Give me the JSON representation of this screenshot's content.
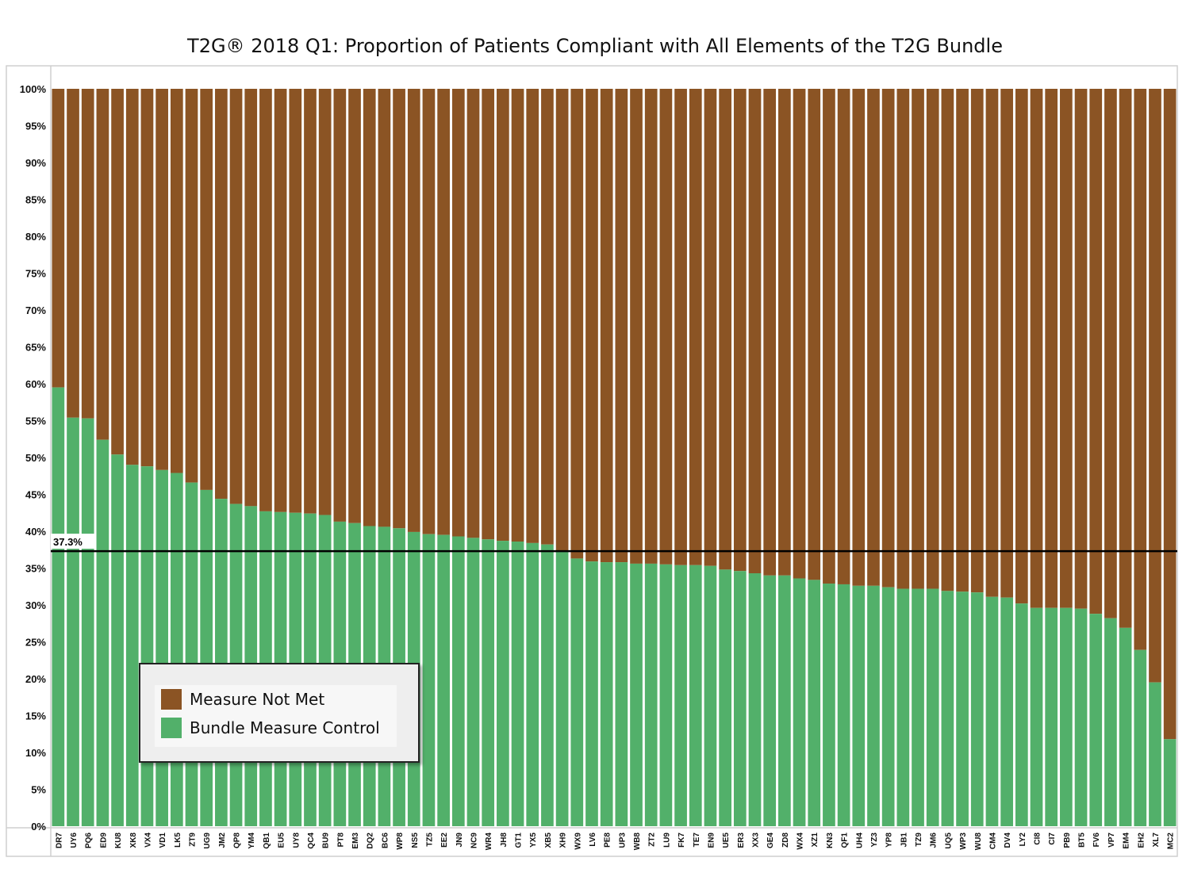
{
  "chart_data": {
    "type": "bar",
    "stacked": true,
    "title": "T2G® 2018 Q1: Proportion of Patients Compliant with All Elements of the T2G Bundle",
    "ylim": [
      0,
      100
    ],
    "yticks": [
      "0%",
      "5%",
      "10%",
      "15%",
      "20%",
      "25%",
      "30%",
      "35%",
      "40%",
      "45%",
      "50%",
      "55%",
      "60%",
      "65%",
      "70%",
      "75%",
      "80%",
      "85%",
      "90%",
      "95%",
      "100%"
    ],
    "grid": false,
    "legend_position": "lower-left",
    "categories": [
      "DR7",
      "UY6",
      "PQ6",
      "ED9",
      "KU8",
      "XK8",
      "VX4",
      "VD1",
      "LK5",
      "ZT9",
      "UG9",
      "JM2",
      "QP8",
      "YM4",
      "QB1",
      "EU5",
      "UY8",
      "QC4",
      "BU9",
      "PT8",
      "EM3",
      "DQ2",
      "BC6",
      "WP8",
      "NS5",
      "TZ5",
      "EE2",
      "JN9",
      "NC9",
      "WR4",
      "JH8",
      "GT1",
      "YX5",
      "XB5",
      "XH9",
      "WX9",
      "LV6",
      "PE8",
      "UP3",
      "WB8",
      "ZT2",
      "LU9",
      "FK7",
      "TE7",
      "EN9",
      "UE5",
      "ER3",
      "XX3",
      "GE4",
      "ZD8",
      "WX4",
      "XZ1",
      "KN3",
      "QF1",
      "UH4",
      "YZ3",
      "YP8",
      "JB1",
      "TZ9",
      "JM6",
      "UQ5",
      "WP3",
      "WU8",
      "CM4",
      "DV4",
      "LY2",
      "CI8",
      "CI7",
      "PB9",
      "BT5",
      "FV6",
      "VP7",
      "EM4",
      "EH2",
      "XL7",
      "MC2"
    ],
    "series": [
      {
        "name": "Bundle Measure Control",
        "color": "#52b06a",
        "values": [
          59.5,
          55.4,
          55.3,
          52.4,
          50.4,
          49.0,
          48.8,
          48.3,
          47.9,
          46.6,
          45.6,
          44.4,
          43.7,
          43.4,
          42.7,
          42.6,
          42.5,
          42.4,
          42.2,
          41.3,
          41.1,
          40.7,
          40.6,
          40.4,
          39.9,
          39.6,
          39.5,
          39.3,
          39.1,
          38.9,
          38.7,
          38.6,
          38.4,
          38.2,
          37.2,
          36.3,
          35.9,
          35.8,
          35.8,
          35.6,
          35.6,
          35.5,
          35.4,
          35.4,
          35.3,
          34.8,
          34.6,
          34.3,
          34.0,
          34.0,
          33.6,
          33.4,
          32.9,
          32.8,
          32.6,
          32.6,
          32.4,
          32.2,
          32.2,
          32.2,
          31.9,
          31.8,
          31.7,
          31.1,
          31.0,
          30.2,
          29.6,
          29.6,
          29.6,
          29.5,
          28.8,
          28.2,
          26.9,
          23.9,
          19.5,
          11.8
        ]
      },
      {
        "name": "Measure Not Met",
        "color": "#8b5424"
      }
    ],
    "reference_line": {
      "value": 37.3,
      "label": "37.3%",
      "color": "#000000"
    }
  },
  "legend": {
    "items": [
      {
        "label": "Measure Not Met",
        "color": "#8b5424"
      },
      {
        "label": "Bundle Measure Control",
        "color": "#52b06a"
      }
    ]
  }
}
